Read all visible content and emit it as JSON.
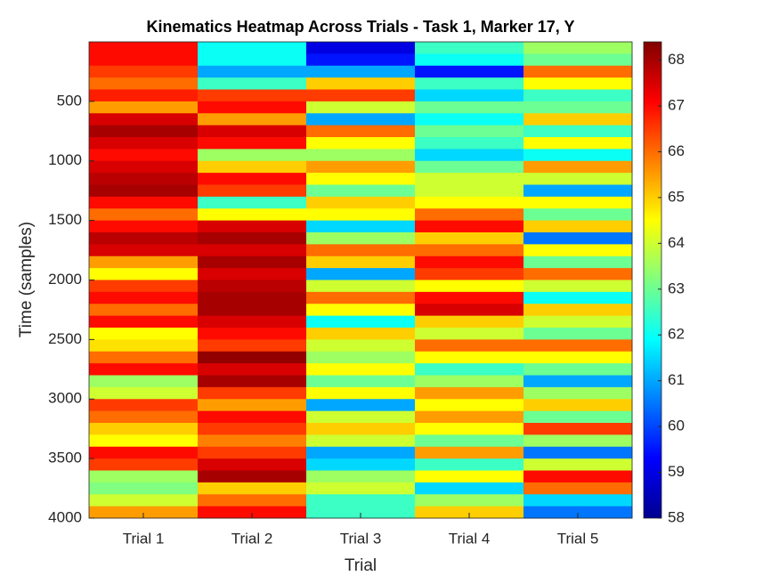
{
  "chart_data": {
    "type": "heatmap",
    "title": "Kinematics Heatmap Across Trials - Task 1, Marker 17, Y",
    "xlabel": "Trial",
    "ylabel": "Time (samples)",
    "categories": [
      "Trial 1",
      "Trial 2",
      "Trial 3",
      "Trial 4",
      "Trial 5"
    ],
    "y": [
      50,
      150,
      250,
      350,
      450,
      550,
      650,
      750,
      850,
      950,
      1050,
      1150,
      1250,
      1350,
      1450,
      1550,
      1650,
      1750,
      1850,
      1950,
      2050,
      2150,
      2250,
      2350,
      2450,
      2550,
      2650,
      2750,
      2850,
      2950,
      3050,
      3150,
      3250,
      3350,
      3450,
      3550,
      3650,
      3750,
      3850,
      3950
    ],
    "z": [
      [
        67,
        67,
        66.5,
        66,
        66.8,
        65.5,
        67.5,
        68,
        67.5,
        67,
        67.5,
        67.8,
        68,
        67,
        66,
        67,
        67.8,
        67.5,
        65.5,
        64.5,
        66.5,
        67,
        66,
        67,
        64.5,
        64.8,
        66,
        67,
        63.5,
        64,
        66.5,
        66,
        65,
        64.5,
        67,
        66.5,
        63.5,
        63.2,
        64,
        65.5
      ],
      [
        62,
        62,
        61,
        62.5,
        66.5,
        67,
        65.5,
        67.5,
        67,
        63.5,
        65,
        67,
        66.5,
        62.5,
        64.5,
        67.5,
        68,
        67.5,
        68,
        67.5,
        67.8,
        68,
        68,
        67.5,
        67,
        66.5,
        68.2,
        67.5,
        68,
        66.5,
        65.5,
        67,
        66.5,
        65.8,
        66.5,
        67.5,
        68,
        65,
        66,
        67
      ],
      [
        59,
        59.5,
        61,
        65,
        66.5,
        64,
        61,
        66,
        64.5,
        63.5,
        65.5,
        64.5,
        63,
        65,
        64.5,
        61.5,
        63.5,
        66,
        65,
        61,
        64,
        66,
        64.5,
        62,
        65,
        64,
        63.5,
        64.5,
        63,
        64.5,
        61,
        64,
        65,
        64,
        61,
        61.5,
        63.5,
        64,
        62.5,
        62.5
      ],
      [
        62.5,
        62,
        59.5,
        62.5,
        61.5,
        63,
        62,
        63,
        62.5,
        61.5,
        63,
        64,
        64,
        64.5,
        66,
        67,
        65,
        66,
        67,
        66.5,
        64.5,
        67,
        67.5,
        65,
        64,
        66,
        64.5,
        62.5,
        63.5,
        65.5,
        64.5,
        65.5,
        64.5,
        63,
        65.5,
        62.5,
        64.5,
        61.5,
        63.5,
        65
      ],
      [
        63.5,
        63,
        66,
        64.5,
        62.5,
        63,
        65,
        62.5,
        64.5,
        62,
        65.5,
        64,
        61,
        64.5,
        63,
        65,
        60.5,
        64.5,
        63,
        66,
        64,
        62,
        65,
        64,
        63,
        66,
        64.5,
        63,
        61,
        63.5,
        65,
        63,
        66.5,
        63.5,
        60.5,
        64,
        67,
        66,
        61.5,
        60.5
      ]
    ],
    "ylim": [
      0,
      4000
    ],
    "yticks": [
      500,
      1000,
      1500,
      2000,
      2500,
      3000,
      3500,
      4000
    ],
    "colormap": "jet",
    "clim": [
      58,
      68.4
    ],
    "cticks": [
      58,
      59,
      60,
      61,
      62,
      63,
      64,
      65,
      66,
      67,
      68
    ]
  }
}
